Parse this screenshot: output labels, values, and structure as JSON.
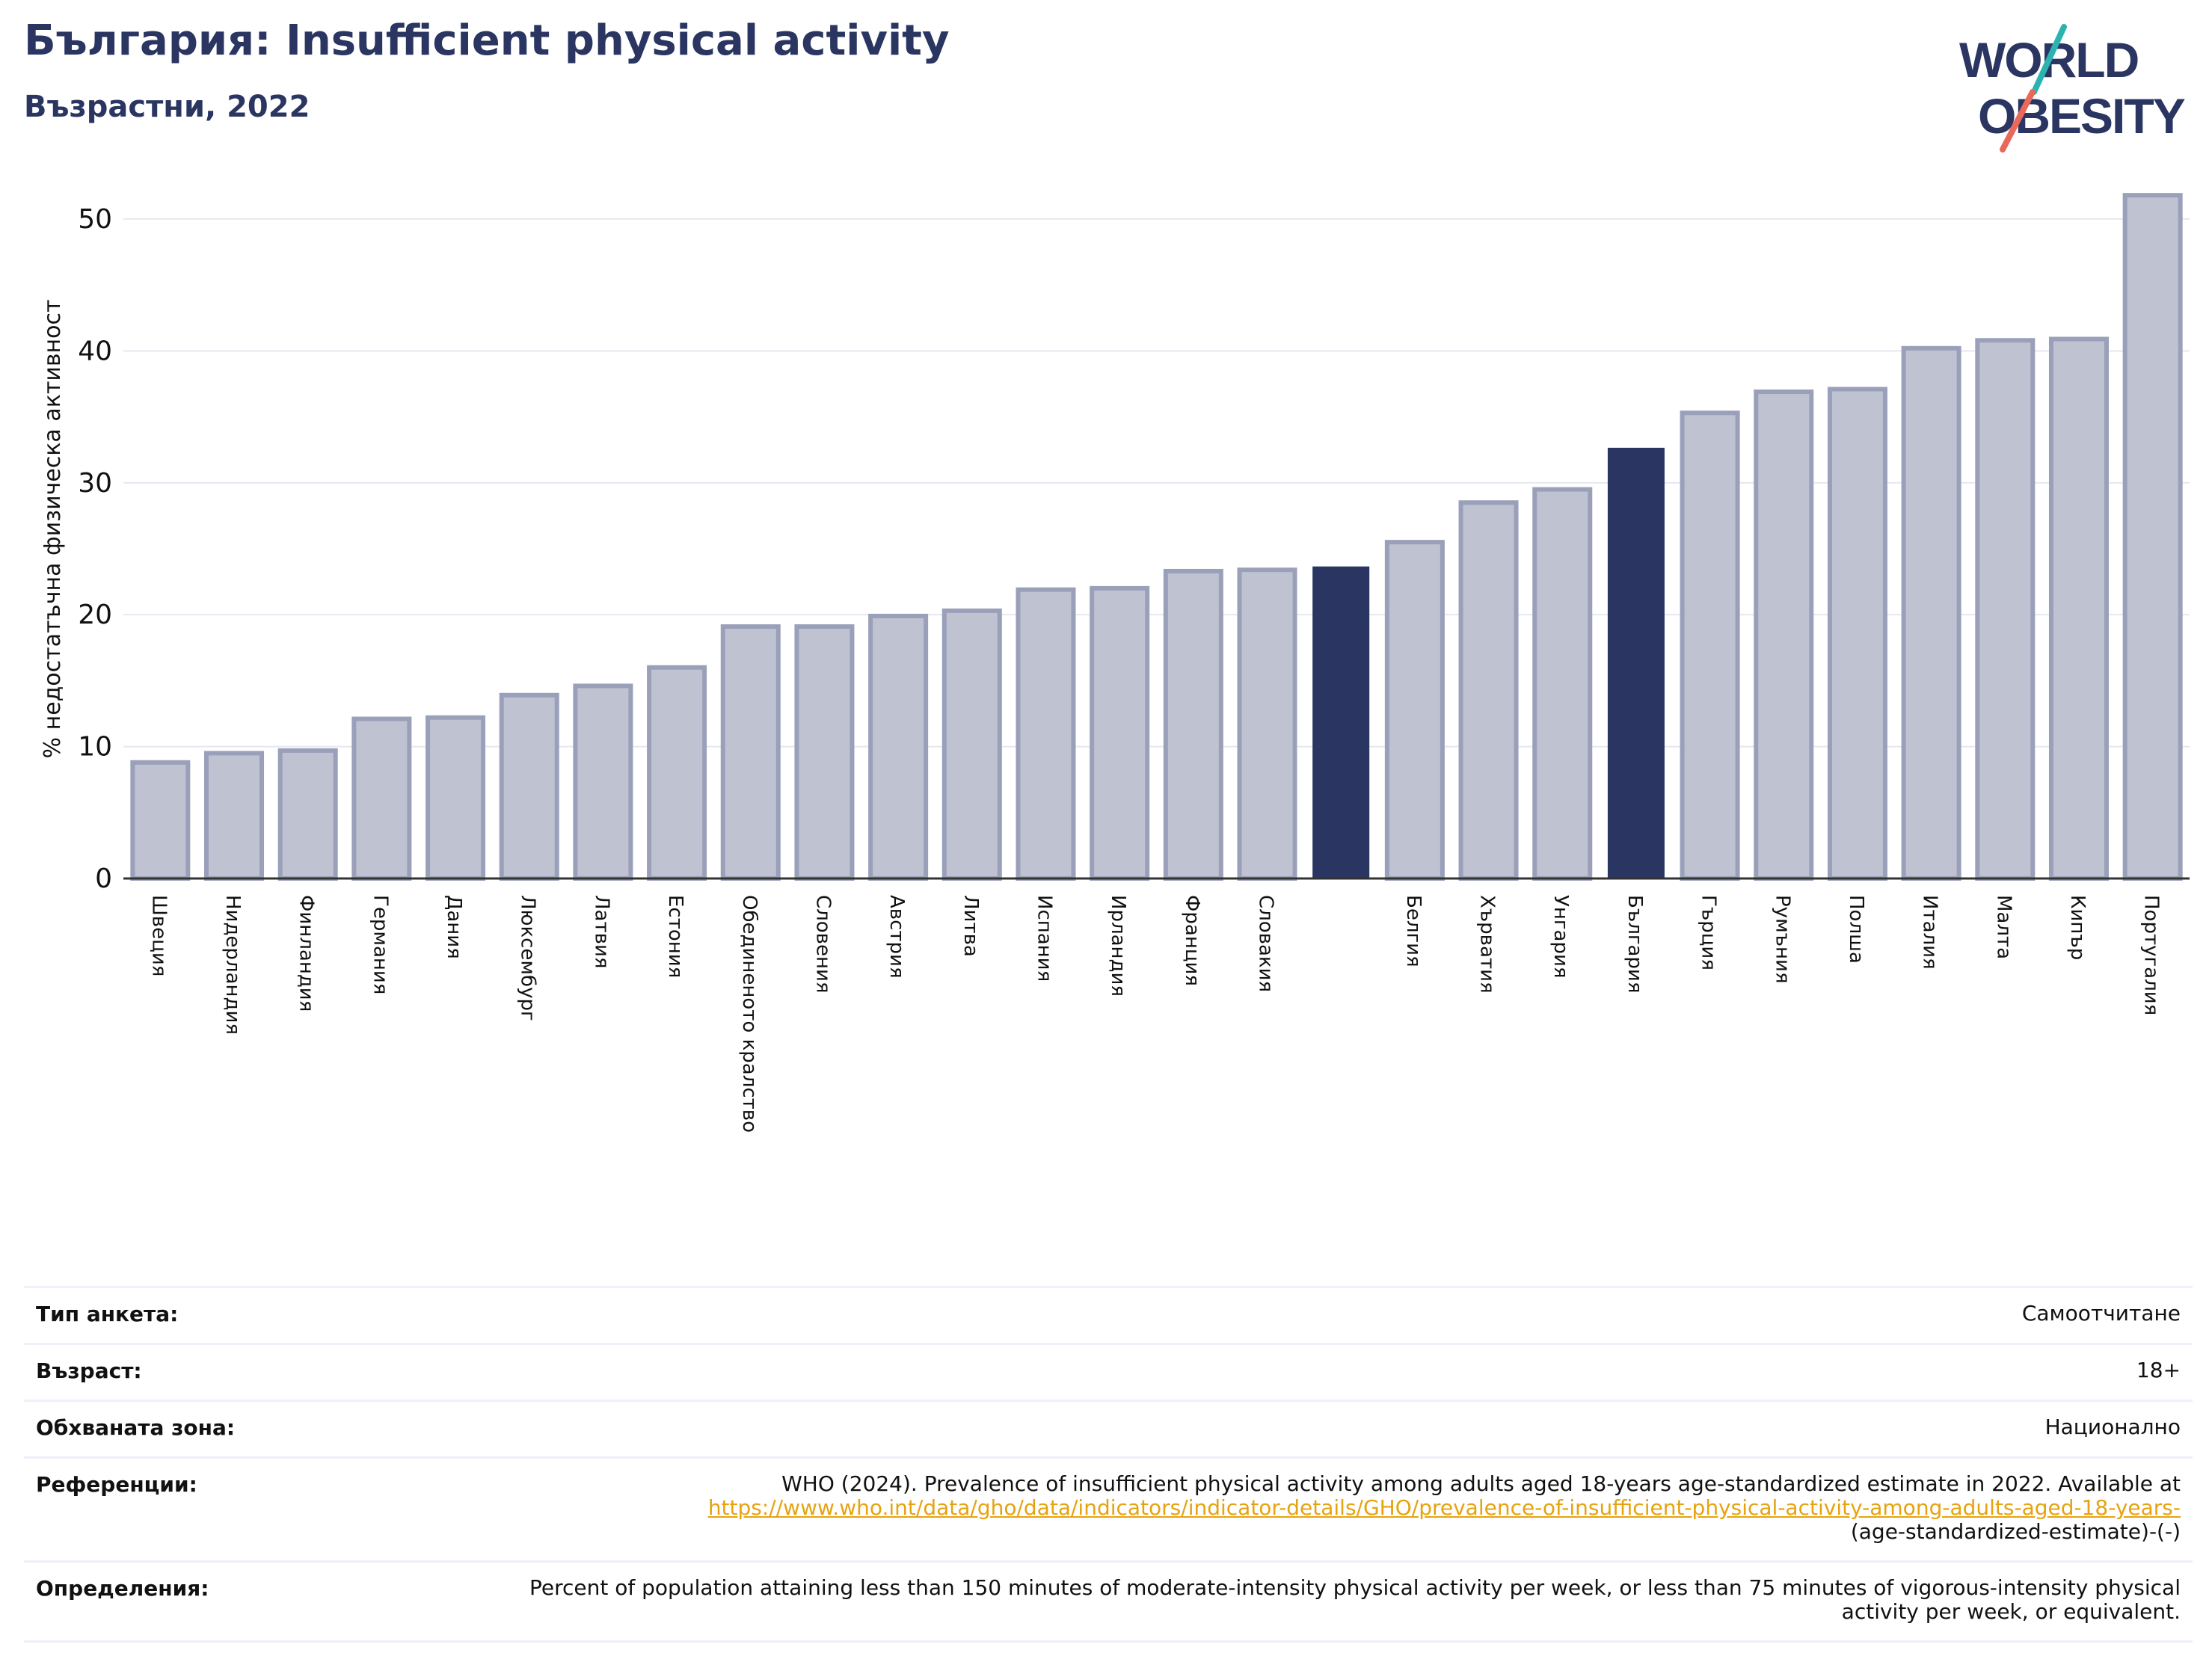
{
  "header": {
    "title": "България: Insufficient physical activity",
    "subtitle": "Възрастни, 2022"
  },
  "logo": {
    "line1": "WORLD",
    "line2": "OBESITY"
  },
  "colors": {
    "bar": "#bfc2d0",
    "bar_edge": "#9aa0b9",
    "highlight": "#2a3561",
    "grid": "#e6e8f0",
    "link": "#e6a30f"
  },
  "chart_data": {
    "type": "bar",
    "title": "",
    "xlabel": "",
    "ylabel": "% недостатъчна физическа активност",
    "ylim": [
      0,
      53
    ],
    "yticks": [
      0,
      10,
      20,
      30,
      40,
      50
    ],
    "grid": true,
    "categories": [
      "Швеция",
      "Нидерландия",
      "Финландия",
      "Германия",
      "Дания",
      "Люксембург",
      "Латвия",
      "Естония",
      "Обединеното кралство",
      "Словения",
      "Австрия",
      "Литва",
      "Испания",
      "Ирландия",
      "Франция",
      "Словакия",
      "",
      "Белгия",
      "Хърватия",
      "Унгария",
      "България",
      "Гърция",
      "Румъния",
      "Полша",
      "Италия",
      "Малта",
      "Кипър",
      "Португалия"
    ],
    "values": [
      8.8,
      9.5,
      9.7,
      12.1,
      12.2,
      13.9,
      14.6,
      16.0,
      19.1,
      19.1,
      19.9,
      20.3,
      21.9,
      22.0,
      23.3,
      23.4,
      23.6,
      25.5,
      28.5,
      29.5,
      32.6,
      35.3,
      36.9,
      37.1,
      40.2,
      40.8,
      40.9,
      51.8
    ],
    "highlighted": [
      "",
      "България"
    ]
  },
  "meta": {
    "rows": [
      {
        "label": "Тип анкета:",
        "value": "Самоотчитане"
      },
      {
        "label": "Възраст:",
        "value": "18+"
      },
      {
        "label": "Обхваната зона:",
        "value": "Национално"
      },
      {
        "label": "Референции:",
        "value": "WHO (2024). Prevalence of insufficient physical activity among adults aged 18-years age-standardized estimate in 2022. Available at",
        "link": "https://www.who.int/data/gho/data/indicators/indicator-details/GHO/prevalence-of-insufficient-physical-activity-among-adults-aged-18-years-",
        "value_after": "(age-standardized-estimate)-(-)"
      },
      {
        "label": "Определения:",
        "value": "Percent of population attaining less than 150 minutes of moderate-intensity physical activity per week, or less than 75 minutes of vigorous-intensity physical activity per week, or equivalent."
      }
    ]
  }
}
